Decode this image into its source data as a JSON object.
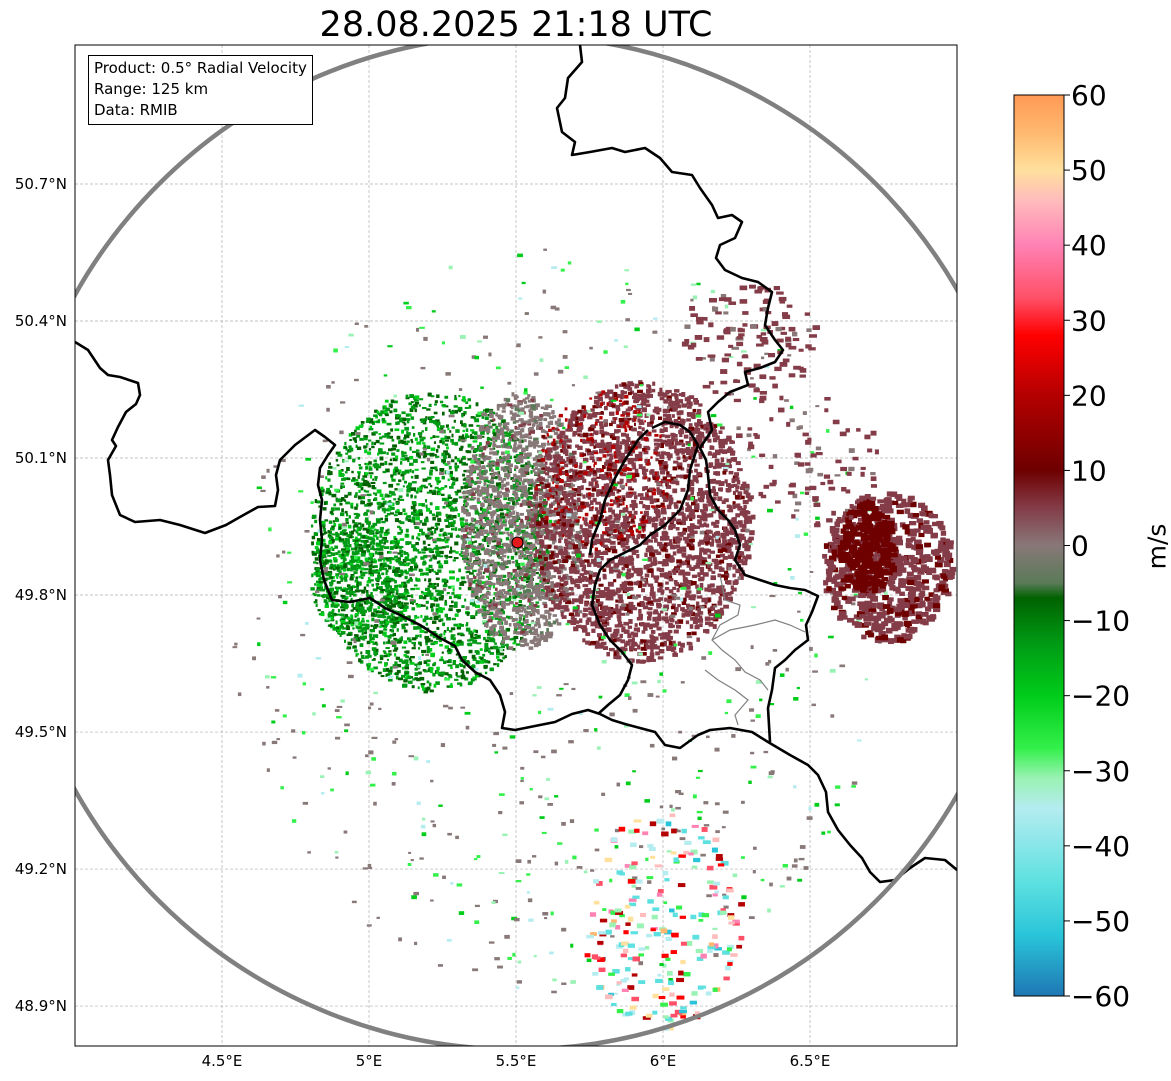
{
  "title": "28.08.2025 21:18 UTC",
  "info_box": {
    "lines": [
      "Product: 0.5° Radial Velocity",
      "Range: 125 km",
      "Data: RMIB"
    ]
  },
  "axes": {
    "x_ticks": [
      "4.5°E",
      "5°E",
      "5.5°E",
      "6°E",
      "6.5°E"
    ],
    "x_values": [
      4.5,
      5.0,
      5.5,
      6.0,
      6.5
    ],
    "y_ticks": [
      "50.7°N",
      "50.4°N",
      "50.1°N",
      "49.8°N",
      "49.5°N",
      "49.2°N",
      "48.9°N"
    ],
    "y_values": [
      50.7,
      50.4,
      50.1,
      49.8,
      49.5,
      49.2,
      48.9
    ],
    "lon_range": [
      4.0,
      7.0
    ],
    "lat_range": [
      48.8,
      51.0
    ],
    "grid": true
  },
  "radar_site": {
    "lon": 5.505,
    "lat": 49.915,
    "marker_color": "#e31a1c"
  },
  "range_ring_color": "#808080",
  "colorbar": {
    "label": "m/s",
    "ticks": [
      "60",
      "50",
      "40",
      "30",
      "20",
      "10",
      "0",
      "−10",
      "−20",
      "−30",
      "−40",
      "−50",
      "−60"
    ],
    "tick_values": [
      60,
      50,
      40,
      30,
      20,
      10,
      0,
      -10,
      -20,
      -30,
      -40,
      -50,
      -60
    ],
    "range": [
      -60,
      60
    ],
    "stops": [
      {
        "v": -60,
        "c": "#1f77b4"
      },
      {
        "v": -52,
        "c": "#29c4d9"
      },
      {
        "v": -45,
        "c": "#5ce0e0"
      },
      {
        "v": -35,
        "c": "#b4ecf0"
      },
      {
        "v": -31,
        "c": "#9af2b4"
      },
      {
        "v": -27,
        "c": "#33f04a"
      },
      {
        "v": -20,
        "c": "#00cc1a"
      },
      {
        "v": -13,
        "c": "#009a14"
      },
      {
        "v": -7,
        "c": "#006200"
      },
      {
        "v": -5,
        "c": "#5a7a58"
      },
      {
        "v": 0,
        "c": "#887878"
      },
      {
        "v": 5,
        "c": "#843c48"
      },
      {
        "v": 10,
        "c": "#6e0000"
      },
      {
        "v": 20,
        "c": "#b40000"
      },
      {
        "v": 28,
        "c": "#ff0000"
      },
      {
        "v": 33,
        "c": "#ff5068"
      },
      {
        "v": 40,
        "c": "#ff82b4"
      },
      {
        "v": 46,
        "c": "#ffbcbc"
      },
      {
        "v": 50,
        "c": "#ffe09c"
      },
      {
        "v": 55,
        "c": "#ffb870"
      },
      {
        "v": 60,
        "c": "#ff9a55"
      }
    ]
  }
}
